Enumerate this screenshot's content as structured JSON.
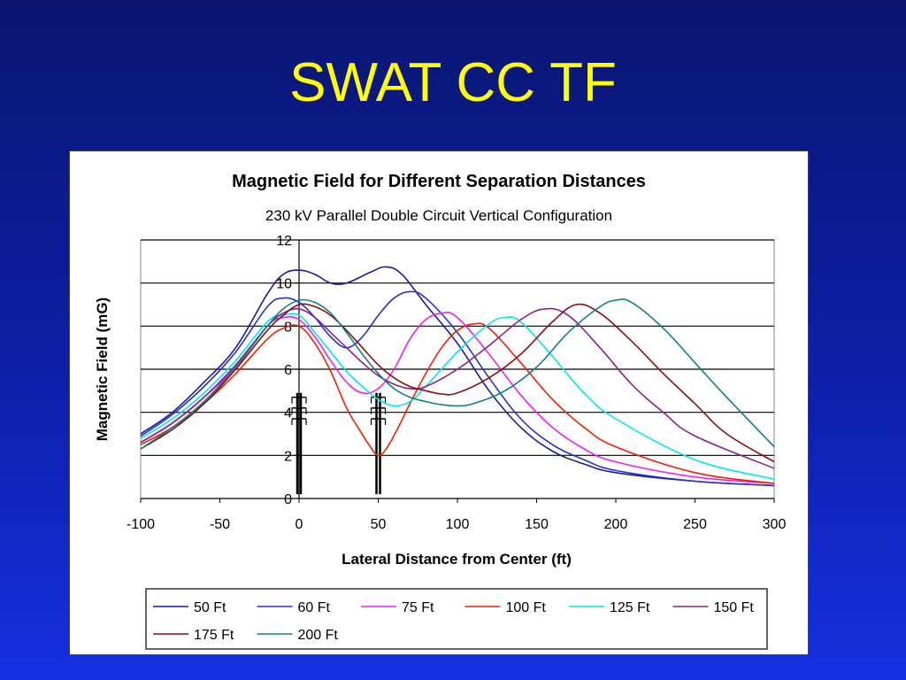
{
  "slide": {
    "title": "SWAT CC TF"
  },
  "chart_data": {
    "type": "line",
    "title": "Magnetic Field for Different Separation Distances",
    "subtitle": "230 kV Parallel Double Circuit Vertical Configuration",
    "xlabel": "Lateral Distance from Center (ft)",
    "ylabel": "Magnetic Field (mG)",
    "xlim": [
      -100,
      300
    ],
    "ylim": [
      0,
      12
    ],
    "x_ticks": [
      -100,
      -50,
      0,
      50,
      100,
      150,
      200,
      250,
      300
    ],
    "y_ticks": [
      0,
      2,
      4,
      6,
      8,
      10,
      12
    ],
    "grid": "horizontal",
    "legend_position": "bottom",
    "series": [
      {
        "name": "50 Ft",
        "color": "#1a1a9c",
        "points": [
          [
            -100,
            3.0
          ],
          [
            -80,
            4.0
          ],
          [
            -60,
            5.4
          ],
          [
            -40,
            7.0
          ],
          [
            -20,
            9.5
          ],
          [
            -10,
            10.4
          ],
          [
            0,
            10.6
          ],
          [
            10,
            10.4
          ],
          [
            20,
            10.0
          ],
          [
            30,
            10.0
          ],
          [
            45,
            10.5
          ],
          [
            55,
            10.75
          ],
          [
            65,
            10.4
          ],
          [
            80,
            9.0
          ],
          [
            100,
            7.2
          ],
          [
            120,
            5.0
          ],
          [
            140,
            3.3
          ],
          [
            160,
            2.2
          ],
          [
            180,
            1.6
          ],
          [
            200,
            1.2
          ],
          [
            250,
            0.8
          ],
          [
            300,
            0.6
          ]
        ]
      },
      {
        "name": "60 Ft",
        "color": "#2233cc",
        "points": [
          [
            -100,
            2.9
          ],
          [
            -80,
            3.9
          ],
          [
            -60,
            5.2
          ],
          [
            -40,
            6.8
          ],
          [
            -20,
            8.9
          ],
          [
            -10,
            9.3
          ],
          [
            0,
            9.1
          ],
          [
            10,
            8.4
          ],
          [
            20,
            7.5
          ],
          [
            30,
            7.0
          ],
          [
            40,
            7.5
          ],
          [
            50,
            8.5
          ],
          [
            60,
            9.3
          ],
          [
            70,
            9.6
          ],
          [
            80,
            9.3
          ],
          [
            100,
            7.7
          ],
          [
            120,
            5.6
          ],
          [
            140,
            3.7
          ],
          [
            160,
            2.5
          ],
          [
            180,
            1.8
          ],
          [
            200,
            1.3
          ],
          [
            250,
            0.8
          ],
          [
            300,
            0.6
          ]
        ]
      },
      {
        "name": "75 Ft",
        "color": "#ee22ee",
        "points": [
          [
            -100,
            2.6
          ],
          [
            -80,
            3.5
          ],
          [
            -60,
            4.7
          ],
          [
            -40,
            6.1
          ],
          [
            -20,
            8.0
          ],
          [
            -10,
            8.4
          ],
          [
            0,
            8.3
          ],
          [
            10,
            7.5
          ],
          [
            20,
            6.4
          ],
          [
            30,
            5.4
          ],
          [
            40,
            4.9
          ],
          [
            50,
            5.1
          ],
          [
            60,
            6.0
          ],
          [
            70,
            7.4
          ],
          [
            80,
            8.3
          ],
          [
            90,
            8.6
          ],
          [
            100,
            8.4
          ],
          [
            120,
            6.7
          ],
          [
            140,
            4.8
          ],
          [
            160,
            3.3
          ],
          [
            180,
            2.3
          ],
          [
            200,
            1.7
          ],
          [
            250,
            1.0
          ],
          [
            300,
            0.7
          ]
        ]
      },
      {
        "name": "100 Ft",
        "color": "#ee2200",
        "points": [
          [
            -100,
            2.5
          ],
          [
            -80,
            3.3
          ],
          [
            -60,
            4.4
          ],
          [
            -40,
            5.8
          ],
          [
            -20,
            7.4
          ],
          [
            -10,
            7.9
          ],
          [
            0,
            8.0
          ],
          [
            10,
            7.2
          ],
          [
            20,
            5.9
          ],
          [
            30,
            4.2
          ],
          [
            38,
            3.2
          ],
          [
            45,
            2.4
          ],
          [
            50,
            2.0
          ],
          [
            55,
            2.3
          ],
          [
            62,
            3.2
          ],
          [
            70,
            4.4
          ],
          [
            80,
            5.8
          ],
          [
            90,
            7.0
          ],
          [
            100,
            7.8
          ],
          [
            110,
            8.1
          ],
          [
            120,
            7.9
          ],
          [
            140,
            6.3
          ],
          [
            160,
            4.6
          ],
          [
            180,
            3.3
          ],
          [
            200,
            2.4
          ],
          [
            250,
            1.2
          ],
          [
            300,
            0.7
          ]
        ]
      },
      {
        "name": "125 Ft",
        "color": "#00e6f0",
        "points": [
          [
            -100,
            2.8
          ],
          [
            -80,
            3.7
          ],
          [
            -60,
            4.9
          ],
          [
            -40,
            6.4
          ],
          [
            -20,
            8.2
          ],
          [
            -10,
            8.5
          ],
          [
            0,
            8.5
          ],
          [
            10,
            7.7
          ],
          [
            20,
            6.8
          ],
          [
            30,
            5.9
          ],
          [
            40,
            5.2
          ],
          [
            50,
            4.6
          ],
          [
            60,
            4.3
          ],
          [
            70,
            4.5
          ],
          [
            80,
            5.2
          ],
          [
            100,
            6.8
          ],
          [
            120,
            8.1
          ],
          [
            130,
            8.4
          ],
          [
            140,
            8.2
          ],
          [
            160,
            6.6
          ],
          [
            180,
            4.9
          ],
          [
            200,
            3.7
          ],
          [
            250,
            1.8
          ],
          [
            300,
            0.9
          ]
        ]
      },
      {
        "name": "150 Ft",
        "color": "#8e1f8e",
        "points": [
          [
            -100,
            2.6
          ],
          [
            -80,
            3.5
          ],
          [
            -60,
            4.7
          ],
          [
            -40,
            6.2
          ],
          [
            -20,
            8.0
          ],
          [
            -10,
            8.6
          ],
          [
            0,
            8.8
          ],
          [
            10,
            8.4
          ],
          [
            20,
            7.7
          ],
          [
            30,
            7.0
          ],
          [
            40,
            6.3
          ],
          [
            50,
            5.7
          ],
          [
            60,
            5.3
          ],
          [
            70,
            5.1
          ],
          [
            80,
            5.2
          ],
          [
            100,
            6.0
          ],
          [
            120,
            7.1
          ],
          [
            140,
            8.3
          ],
          [
            155,
            8.8
          ],
          [
            170,
            8.5
          ],
          [
            190,
            7.0
          ],
          [
            210,
            5.3
          ],
          [
            230,
            4.0
          ],
          [
            250,
            2.9
          ],
          [
            300,
            1.4
          ]
        ]
      },
      {
        "name": "175 Ft",
        "color": "#8b0f0f",
        "points": [
          [
            -100,
            2.3
          ],
          [
            -80,
            3.2
          ],
          [
            -60,
            4.4
          ],
          [
            -40,
            6.0
          ],
          [
            -20,
            7.8
          ],
          [
            -10,
            8.5
          ],
          [
            0,
            9.0
          ],
          [
            10,
            8.9
          ],
          [
            20,
            8.5
          ],
          [
            30,
            7.8
          ],
          [
            40,
            7.0
          ],
          [
            50,
            6.2
          ],
          [
            60,
            5.6
          ],
          [
            70,
            5.2
          ],
          [
            80,
            5.0
          ],
          [
            90,
            4.85
          ],
          [
            100,
            4.9
          ],
          [
            120,
            5.6
          ],
          [
            140,
            6.7
          ],
          [
            160,
            8.2
          ],
          [
            175,
            9.0
          ],
          [
            190,
            8.6
          ],
          [
            210,
            7.3
          ],
          [
            230,
            5.8
          ],
          [
            250,
            4.4
          ],
          [
            270,
            3.0
          ],
          [
            300,
            1.7
          ]
        ]
      },
      {
        "name": "200 Ft",
        "color": "#12807f",
        "points": [
          [
            -100,
            2.3
          ],
          [
            -80,
            3.3
          ],
          [
            -60,
            4.5
          ],
          [
            -40,
            6.1
          ],
          [
            -20,
            8.0
          ],
          [
            -10,
            8.8
          ],
          [
            0,
            9.2
          ],
          [
            10,
            9.1
          ],
          [
            20,
            8.6
          ],
          [
            30,
            7.7
          ],
          [
            40,
            6.7
          ],
          [
            50,
            5.8
          ],
          [
            60,
            5.1
          ],
          [
            70,
            4.7
          ],
          [
            80,
            4.5
          ],
          [
            90,
            4.35
          ],
          [
            100,
            4.3
          ],
          [
            110,
            4.4
          ],
          [
            130,
            5.0
          ],
          [
            150,
            6.1
          ],
          [
            170,
            7.7
          ],
          [
            190,
            8.9
          ],
          [
            200,
            9.2
          ],
          [
            210,
            9.1
          ],
          [
            230,
            7.9
          ],
          [
            250,
            6.3
          ],
          [
            270,
            4.7
          ],
          [
            300,
            2.4
          ]
        ]
      }
    ],
    "tower_markers_x": [
      0,
      50
    ]
  }
}
